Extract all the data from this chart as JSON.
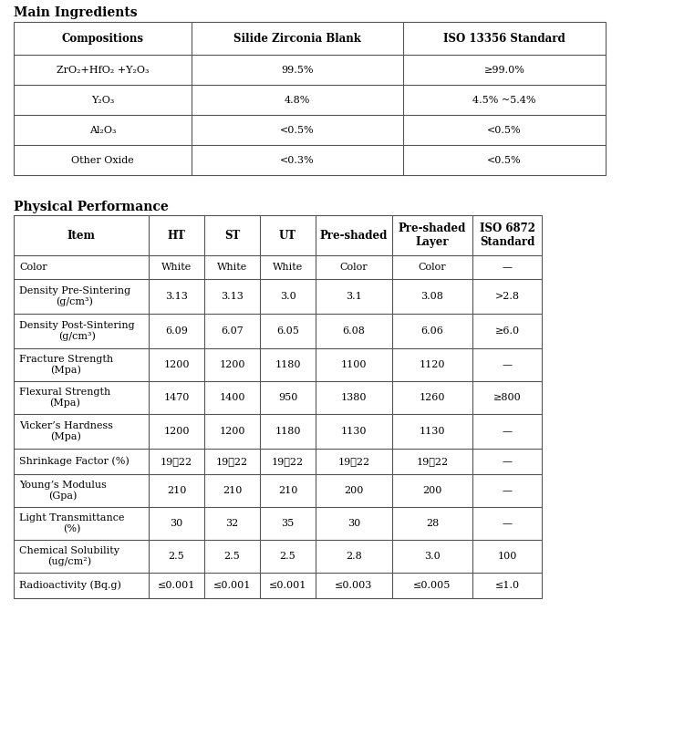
{
  "title1": "Main Ingredients",
  "title2": "Physical Performance",
  "bg_color": "#ffffff",
  "table1_headers": [
    "Compositions",
    "Silide Zirconia Blank",
    "ISO 13356 Standard"
  ],
  "table1_rows": [
    [
      "ZrO₂+HfO₂ +Y₂O₃",
      "99.5%",
      "≥99.0%"
    ],
    [
      "Y₂O₃",
      "4.8%",
      "4.5% ~5.4%"
    ],
    [
      "Al₂O₃",
      "<0.5%",
      "<0.5%"
    ],
    [
      "Other Oxide",
      "<0.3%",
      "<0.5%"
    ]
  ],
  "table2_headers": [
    "Item",
    "HT",
    "ST",
    "UT",
    "Pre-shaded",
    "Pre-shaded\nLayer",
    "ISO 6872\nStandard"
  ],
  "table2_rows": [
    [
      "Color",
      "White",
      "White",
      "White",
      "Color",
      "Color",
      "—"
    ],
    [
      "Density Pre-Sintering\n(g/cm³)",
      "3.13",
      "3.13",
      "3.0",
      "3.1",
      "3.08",
      ">2.8"
    ],
    [
      "Density Post-Sintering\n(g/cm³)",
      "6.09",
      "6.07",
      "6.05",
      "6.08",
      "6.06",
      "≥6.0"
    ],
    [
      "Fracture Strength\n(Mpa)",
      "1200",
      "1200",
      "1180",
      "1100",
      "1120",
      "—"
    ],
    [
      "Flexural Strength\n(Mpa)",
      "1470",
      "1400",
      "950",
      "1380",
      "1260",
      "≥800"
    ],
    [
      "Vicker’s Hardness\n(Mpa)",
      "1200",
      "1200",
      "1180",
      "1130",
      "1130",
      "—"
    ],
    [
      "Shrinkage Factor (%)",
      "19～22",
      "19～22",
      "19～22",
      "19～22",
      "19～22",
      "—"
    ],
    [
      "Youngʼs Modulus\n(Gpa)",
      "210",
      "210",
      "210",
      "200",
      "200",
      "—"
    ],
    [
      "Light Transmittance\n(%)",
      "30",
      "32",
      "35",
      "30",
      "28",
      "—"
    ],
    [
      "Chemical Solubility\n(ug/cm²)",
      "2.5",
      "2.5",
      "2.5",
      "2.8",
      "3.0",
      "100"
    ],
    [
      "Radioactivity (Bq.g)",
      "≤0.001",
      "≤0.001",
      "≤0.001",
      "≤0.003",
      "≤0.005",
      "≤1.0"
    ]
  ],
  "title_fontsize": 10,
  "header_fontsize": 8.5,
  "cell_fontsize": 8,
  "border_color": "#555555"
}
